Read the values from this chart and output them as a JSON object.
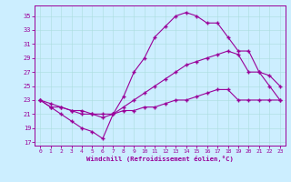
{
  "xlabel": "Windchill (Refroidissement éolien,°C)",
  "bg_color": "#cceeff",
  "line_color": "#990099",
  "xlim": [
    -0.5,
    23.5
  ],
  "ylim": [
    16.5,
    36.5
  ],
  "xticks": [
    0,
    1,
    2,
    3,
    4,
    5,
    6,
    7,
    8,
    9,
    10,
    11,
    12,
    13,
    14,
    15,
    16,
    17,
    18,
    19,
    20,
    21,
    22,
    23
  ],
  "yticks": [
    17,
    19,
    21,
    23,
    25,
    27,
    29,
    31,
    33,
    35
  ],
  "line1_x": [
    0,
    1,
    2,
    3,
    4,
    5,
    6,
    7,
    8,
    9,
    10,
    11,
    12,
    13,
    14,
    15,
    16,
    17,
    18,
    19,
    20,
    21,
    22,
    23
  ],
  "line1_y": [
    23,
    22,
    21,
    20,
    19,
    18.5,
    17.5,
    21,
    23.5,
    27,
    29,
    32,
    33.5,
    35,
    35.5,
    35,
    34,
    34,
    32,
    30,
    30,
    27,
    25,
    23
  ],
  "line2_x": [
    0,
    1,
    2,
    3,
    4,
    5,
    6,
    7,
    8,
    9,
    10,
    11,
    12,
    13,
    14,
    15,
    16,
    17,
    18,
    19,
    20,
    21,
    22,
    23
  ],
  "line2_y": [
    23,
    22,
    22,
    21.5,
    21,
    21,
    20.5,
    21,
    22,
    23,
    24,
    25,
    26,
    27,
    28,
    28.5,
    29,
    29.5,
    30,
    29.5,
    27,
    27,
    26.5,
    25
  ],
  "line3_x": [
    0,
    1,
    2,
    3,
    4,
    5,
    6,
    7,
    8,
    9,
    10,
    11,
    12,
    13,
    14,
    15,
    16,
    17,
    18,
    19,
    20,
    21,
    22,
    23
  ],
  "line3_y": [
    23,
    22.5,
    22,
    21.5,
    21.5,
    21,
    21,
    21,
    21.5,
    21.5,
    22,
    22,
    22.5,
    23,
    23,
    23.5,
    24,
    24.5,
    24.5,
    23,
    23,
    23,
    23,
    23
  ]
}
